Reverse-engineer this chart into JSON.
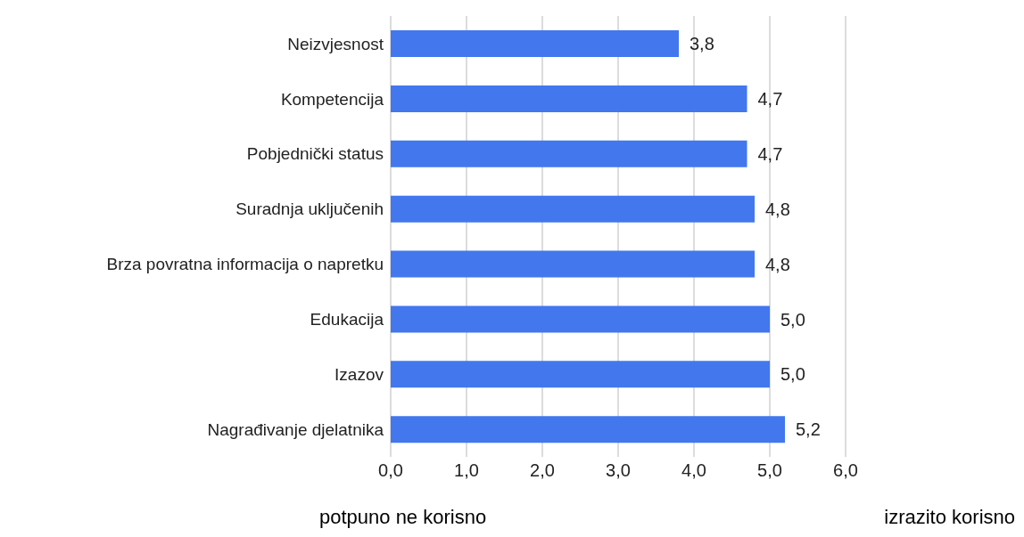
{
  "chart_data": {
    "type": "bar",
    "orientation": "horizontal",
    "categories": [
      "Neizvjesnost",
      "Kompetencija",
      "Pobjednički status",
      "Suradnja uključenih",
      "Brza povratna informacija o napretku",
      "Edukacija",
      "Izazov",
      "Nagrađivanje djelatnika"
    ],
    "values": [
      3.8,
      4.7,
      4.7,
      4.8,
      4.8,
      5.0,
      5.0,
      5.2
    ],
    "value_labels": [
      "3,8",
      "4,7",
      "4,7",
      "4,8",
      "4,8",
      "5,0",
      "5,0",
      "5,2"
    ],
    "color": "#4277ee",
    "xlim": [
      0,
      6
    ],
    "xticks": [
      {
        "value": 0,
        "label": "0,0"
      },
      {
        "value": 1,
        "label": "1,0"
      },
      {
        "value": 2,
        "label": "2,0"
      },
      {
        "value": 3,
        "label": "3,0"
      },
      {
        "value": 4,
        "label": "4,0"
      },
      {
        "value": 5,
        "label": "5,0"
      },
      {
        "value": 6,
        "label": "6,0"
      }
    ],
    "grid": "x",
    "legend": false,
    "annotations": [
      "potpuno ne korisno",
      "izrazito korisno"
    ]
  }
}
